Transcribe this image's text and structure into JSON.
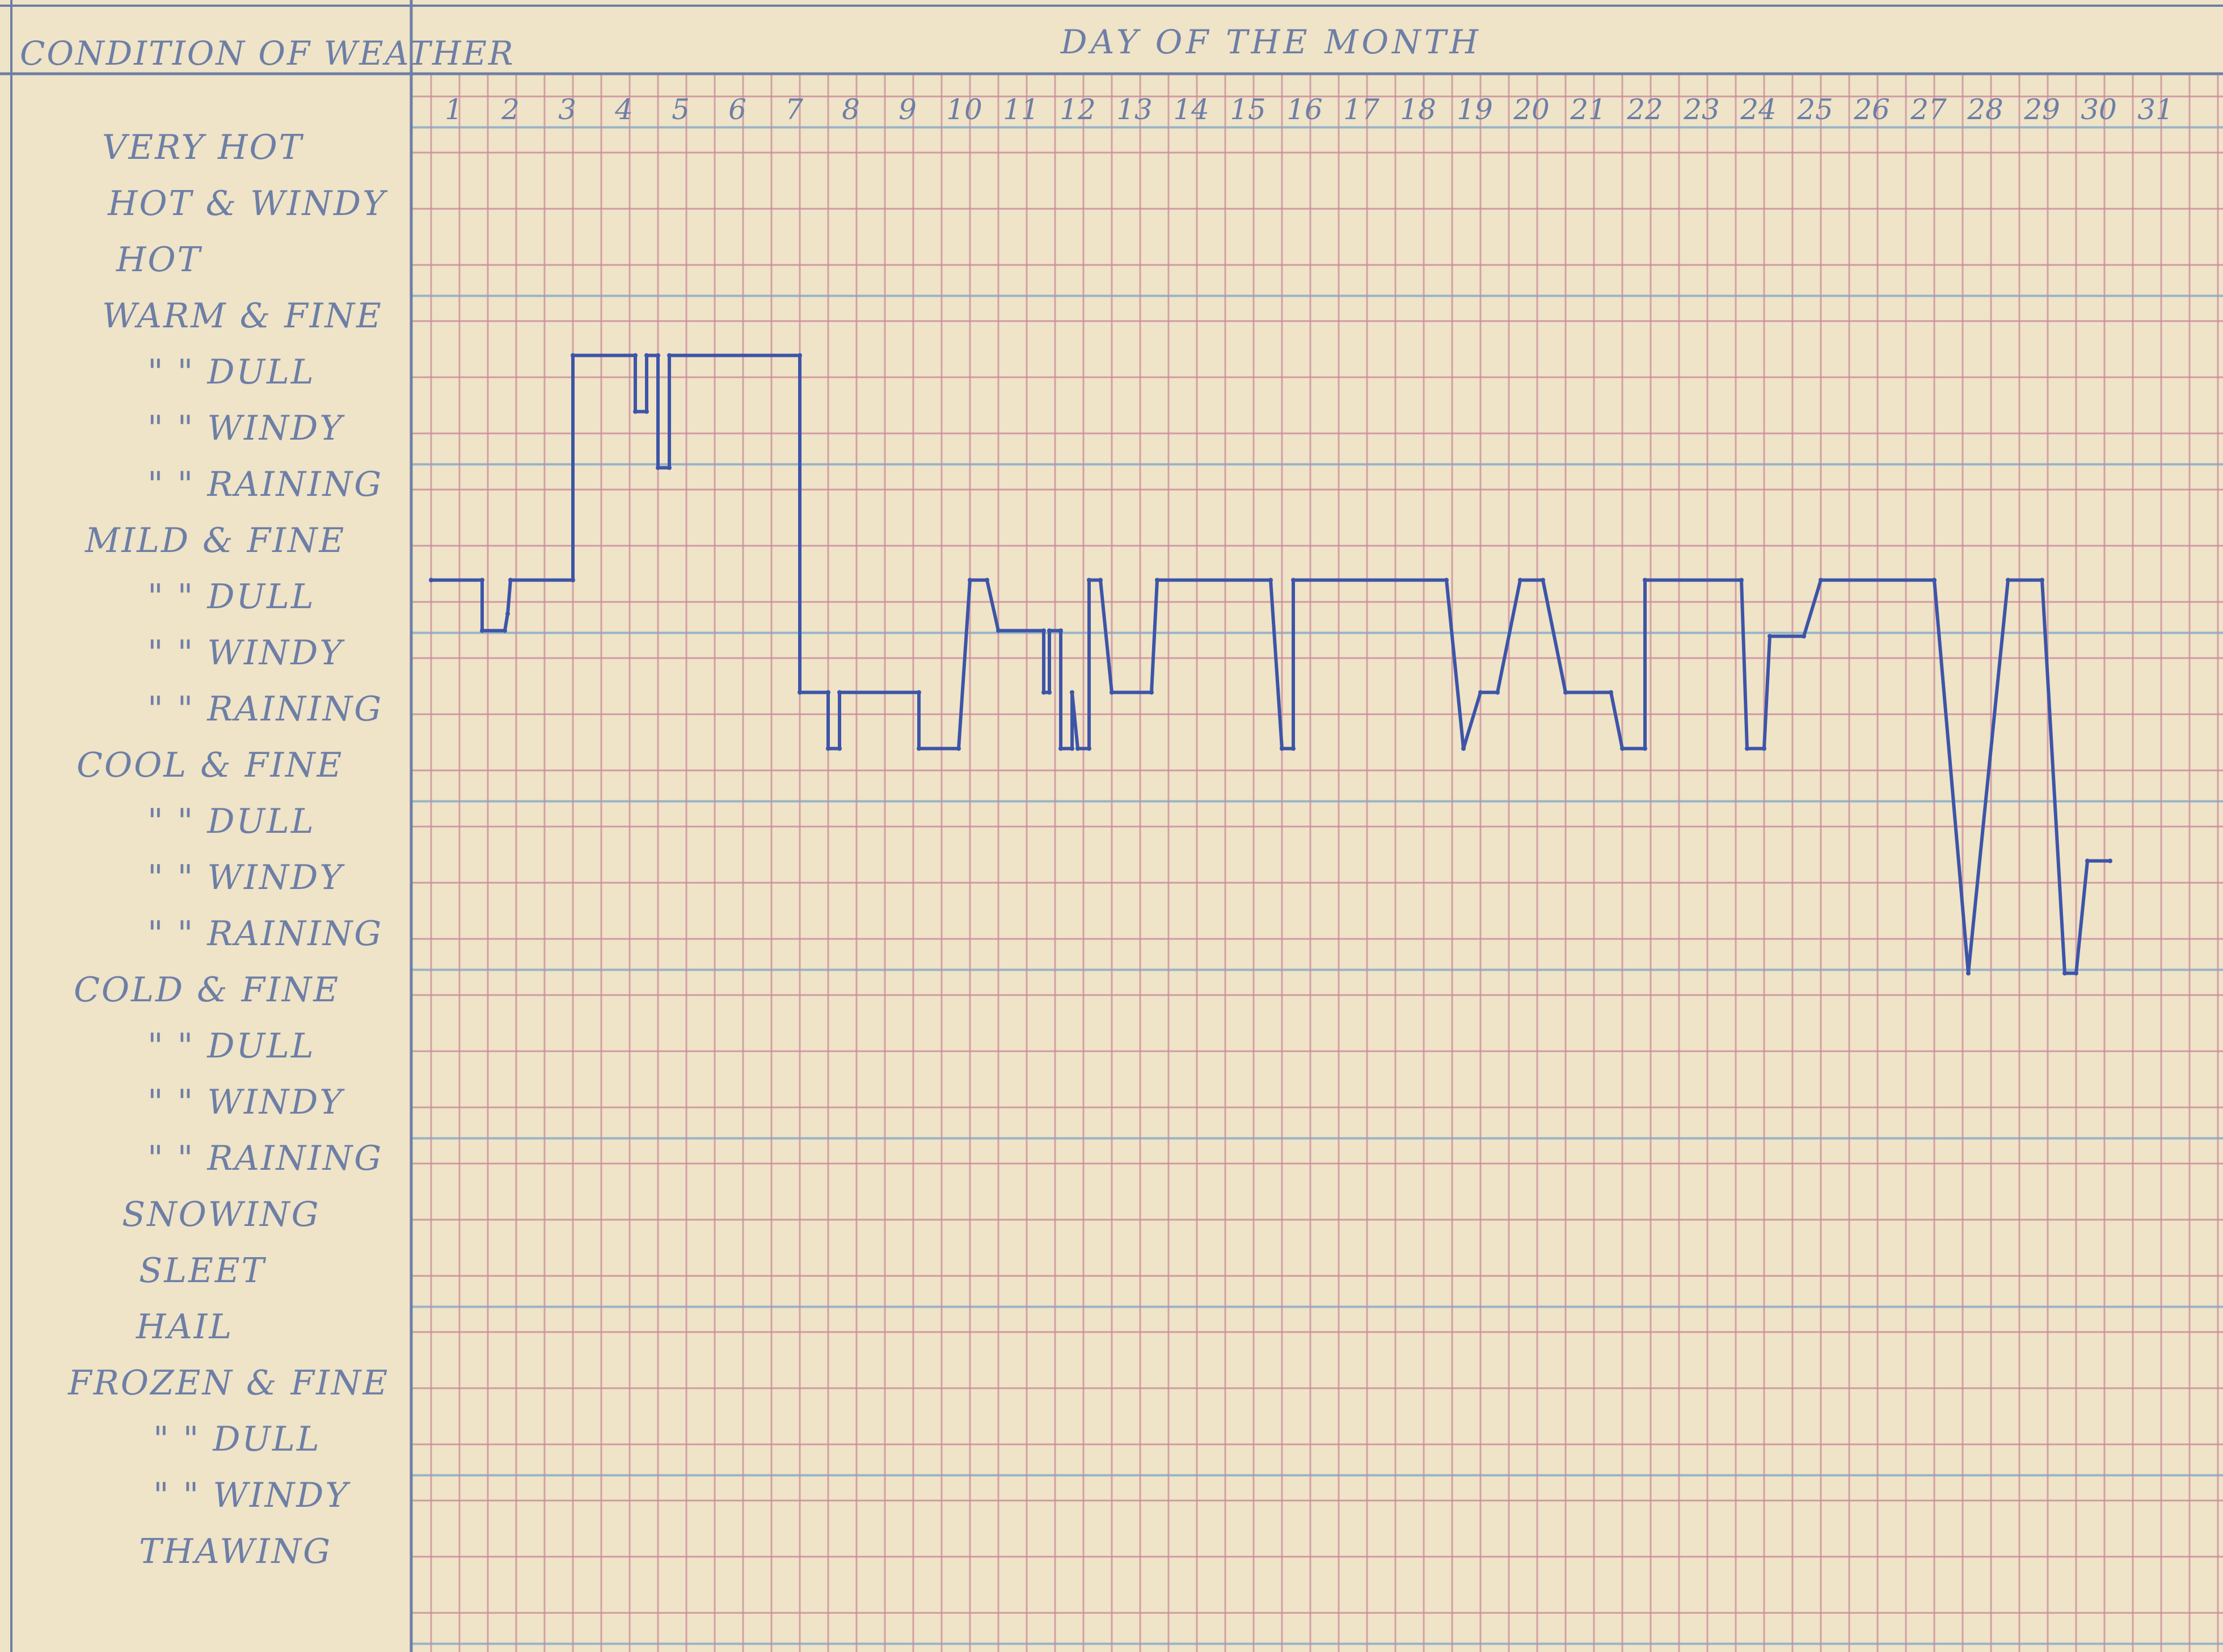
{
  "header": {
    "condition_title": "CONDITION OF WEATHER",
    "day_title": "DAY OF THE MONTH"
  },
  "conditions": [
    {
      "label": "VERY HOT"
    },
    {
      "label": "HOT & WINDY"
    },
    {
      "label": "HOT"
    },
    {
      "label": "WARM & FINE"
    },
    {
      "label": "\" \" DULL"
    },
    {
      "label": "\" \" WINDY"
    },
    {
      "label": "\" \" RAINING"
    },
    {
      "label": "MILD & FINE"
    },
    {
      "label": "\" \" DULL"
    },
    {
      "label": "\" \" WINDY"
    },
    {
      "label": "\" \" RAINING"
    },
    {
      "label": "COOL & FINE"
    },
    {
      "label": "\" \" DULL"
    },
    {
      "label": "\" \" WINDY"
    },
    {
      "label": "\" \" RAINING"
    },
    {
      "label": "COLD & FINE"
    },
    {
      "label": "\" \" DULL"
    },
    {
      "label": "\" \" WINDY"
    },
    {
      "label": "\" \" RAINING"
    },
    {
      "label": "SNOWING"
    },
    {
      "label": "SLEET"
    },
    {
      "label": "HAIL"
    },
    {
      "label": "FROZEN & FINE"
    },
    {
      "label": "\" \" DULL"
    },
    {
      "label": "\" \" WINDY"
    },
    {
      "label": "THAWING"
    }
  ],
  "colors": {
    "paper": "#efe3c8",
    "red_grid": "#c98a9a",
    "blue_rule": "#8fb0c6",
    "ink": "#3d55a8",
    "pencil": "#6d7fa6"
  },
  "chart_data": {
    "type": "line",
    "title": "DAY OF THE MONTH",
    "xlabel": "DAY OF THE MONTH",
    "ylabel": "CONDITION OF WEATHER",
    "x_ticks": [
      "1",
      "2",
      "3",
      "4",
      "5",
      "6",
      "7",
      "8",
      "9",
      "10",
      "11",
      "12",
      "13",
      "14",
      "15",
      "16",
      "17",
      "18",
      "19",
      "20",
      "21",
      "22",
      "23",
      "24",
      "25",
      "26",
      "27",
      "28",
      "29",
      "30",
      "31"
    ],
    "y_categories": [
      "VERY HOT",
      "HOT & WINDY",
      "HOT",
      "WARM & FINE",
      "WARM DULL",
      "WARM WINDY",
      "WARM RAINING",
      "MILD & FINE",
      "MILD DULL",
      "MILD WINDY",
      "MILD RAINING",
      "COOL & FINE",
      "COOL DULL",
      "COOL WINDY",
      "COOL RAINING",
      "COLD & FINE",
      "COLD DULL",
      "COLD WINDY",
      "COLD RAINING",
      "SNOWING",
      "SLEET",
      "HAIL",
      "FROZEN & FINE",
      "FROZEN DULL",
      "FROZEN WINDY",
      "THAWING"
    ],
    "xlim": [
      1,
      32
    ],
    "ylim_index": [
      0,
      25
    ],
    "grid": true,
    "series": [
      {
        "points": [
          [
            1.0,
            7.0
          ],
          [
            1.9,
            7.0
          ],
          [
            1.9,
            7.9
          ],
          [
            2.3,
            7.9
          ],
          [
            2.35,
            7.6
          ],
          [
            2.4,
            7.0
          ],
          [
            3.5,
            7.0
          ],
          [
            3.5,
            3.0
          ],
          [
            4.6,
            3.0
          ],
          [
            4.6,
            4.0
          ],
          [
            4.8,
            4.0
          ],
          [
            4.8,
            3.0
          ],
          [
            5.0,
            3.0
          ],
          [
            5.0,
            5.0
          ],
          [
            5.2,
            5.0
          ],
          [
            5.2,
            3.0
          ],
          [
            7.5,
            3.0
          ],
          [
            7.5,
            9.0
          ],
          [
            8.0,
            9.0
          ],
          [
            8.0,
            10.0
          ],
          [
            8.2,
            10.0
          ],
          [
            8.2,
            9.0
          ],
          [
            9.6,
            9.0
          ],
          [
            9.6,
            10.0
          ],
          [
            10.3,
            10.0
          ],
          [
            10.5,
            7.0
          ],
          [
            10.8,
            7.0
          ],
          [
            11.0,
            7.9
          ],
          [
            11.8,
            7.9
          ],
          [
            11.8,
            9.0
          ],
          [
            11.9,
            9.0
          ],
          [
            11.9,
            7.9
          ],
          [
            12.1,
            7.9
          ],
          [
            12.1,
            10.0
          ],
          [
            12.3,
            10.0
          ],
          [
            12.3,
            9.0
          ],
          [
            12.4,
            10.0
          ],
          [
            12.6,
            10.0
          ],
          [
            12.6,
            7.0
          ],
          [
            12.8,
            7.0
          ],
          [
            13.0,
            9.0
          ],
          [
            13.7,
            9.0
          ],
          [
            13.8,
            7.0
          ],
          [
            15.8,
            7.0
          ],
          [
            16.0,
            10.0
          ],
          [
            16.2,
            10.0
          ],
          [
            16.2,
            7.0
          ],
          [
            18.9,
            7.0
          ],
          [
            19.2,
            10.0
          ],
          [
            19.5,
            9.0
          ],
          [
            19.8,
            9.0
          ],
          [
            20.2,
            7.0
          ],
          [
            20.6,
            7.0
          ],
          [
            21.0,
            9.0
          ],
          [
            21.8,
            9.0
          ],
          [
            22.0,
            10.0
          ],
          [
            22.4,
            10.0
          ],
          [
            22.4,
            7.0
          ],
          [
            24.1,
            7.0
          ],
          [
            24.2,
            10.0
          ],
          [
            24.5,
            10.0
          ],
          [
            24.6,
            8.0
          ],
          [
            25.2,
            8.0
          ],
          [
            25.5,
            7.0
          ],
          [
            27.5,
            7.0
          ],
          [
            28.1,
            14.0
          ],
          [
            28.8,
            7.0
          ],
          [
            29.4,
            7.0
          ],
          [
            29.8,
            14.0
          ],
          [
            30.0,
            14.0
          ],
          [
            30.2,
            12.0
          ],
          [
            30.6,
            12.0
          ]
        ]
      }
    ]
  }
}
